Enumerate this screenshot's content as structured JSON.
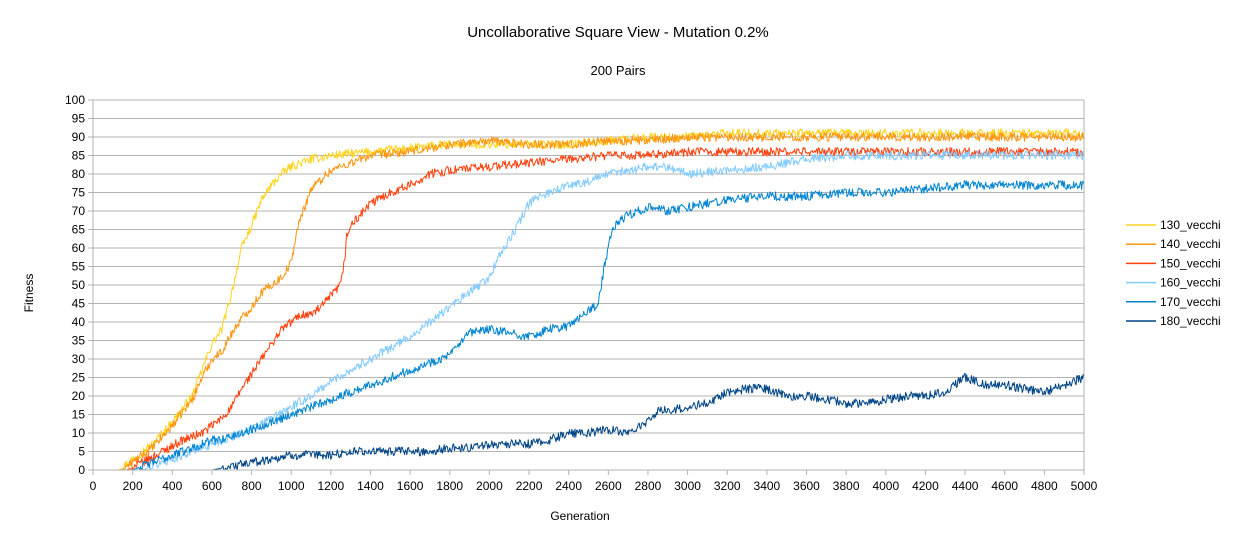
{
  "chart_data": {
    "type": "line",
    "title": "Uncollaborative Square View - Mutation 0.2%",
    "subtitle": "200 Pairs",
    "xlabel": "Generation",
    "ylabel": "Fitness",
    "xlim": [
      0,
      5000
    ],
    "ylim": [
      0,
      100
    ],
    "x_ticks": [
      0,
      200,
      400,
      600,
      800,
      1000,
      1200,
      1400,
      1600,
      1800,
      2000,
      2200,
      2400,
      2600,
      2800,
      3000,
      3200,
      3400,
      3600,
      3800,
      4000,
      4200,
      4400,
      4600,
      4800,
      5000
    ],
    "y_ticks": [
      0,
      5,
      10,
      15,
      20,
      25,
      30,
      35,
      40,
      45,
      50,
      55,
      60,
      65,
      70,
      75,
      80,
      85,
      90,
      95,
      100
    ],
    "grid": true,
    "legend_position": "right",
    "series": [
      {
        "name": "130_vecchi",
        "color": "#ffd320",
        "x": [
          130,
          200,
          300,
          400,
          500,
          550,
          600,
          650,
          700,
          750,
          800,
          850,
          900,
          950,
          1000,
          1100,
          1200,
          1400,
          1600,
          1800,
          2000,
          2200,
          2400,
          2600,
          2800,
          3000,
          3200,
          3400,
          3600,
          3800,
          4000,
          4200,
          4400,
          4600,
          4800,
          5000
        ],
        "y": [
          0,
          3,
          7,
          13,
          20,
          27,
          34,
          38,
          48,
          60,
          66,
          73,
          77,
          80,
          82,
          84,
          85,
          86,
          87,
          88,
          88,
          88,
          88,
          89,
          90,
          90,
          91,
          91,
          91,
          91,
          91,
          91,
          91,
          91,
          91,
          91
        ]
      },
      {
        "name": "140_vecchi",
        "color": "#ff950e",
        "x": [
          140,
          200,
          300,
          400,
          500,
          550,
          600,
          650,
          700,
          750,
          800,
          850,
          900,
          950,
          1000,
          1030,
          1060,
          1100,
          1200,
          1300,
          1400,
          1600,
          1800,
          2000,
          2200,
          2400,
          2600,
          2800,
          3000,
          3200,
          3400,
          3600,
          3800,
          4000,
          4200,
          4400,
          4600,
          4800,
          5000
        ],
        "y": [
          0,
          2,
          6,
          12,
          19,
          25,
          30,
          32,
          37,
          41,
          44,
          48,
          50,
          52,
          56,
          65,
          70,
          76,
          81,
          83,
          85,
          86,
          88,
          89,
          88,
          88,
          89,
          89,
          90,
          90,
          90,
          90,
          90,
          90,
          90,
          90,
          90,
          90,
          90
        ]
      },
      {
        "name": "150_vecchi",
        "color": "#ff420e",
        "x": [
          170,
          250,
          350,
          450,
          550,
          650,
          700,
          750,
          800,
          850,
          900,
          950,
          1000,
          1050,
          1100,
          1150,
          1200,
          1250,
          1270,
          1280,
          1300,
          1350,
          1400,
          1500,
          1600,
          1700,
          1800,
          2000,
          2200,
          2400,
          2600,
          2800,
          3000,
          3200,
          3400,
          3600,
          3800,
          4000,
          4200,
          4400,
          4600,
          4800,
          5000
        ],
        "y": [
          0,
          2,
          5,
          8,
          10,
          14,
          17,
          22,
          26,
          30,
          34,
          38,
          40,
          42,
          42,
          44,
          47,
          50,
          57,
          63,
          66,
          69,
          72,
          75,
          77,
          80,
          81,
          82,
          83,
          84,
          85,
          85,
          86,
          86,
          86,
          86,
          86,
          86,
          86,
          86,
          86,
          86,
          86
        ]
      },
      {
        "name": "160_vecchi",
        "color": "#83caff",
        "x": [
          250,
          300,
          400,
          500,
          600,
          700,
          800,
          900,
          1000,
          1100,
          1200,
          1300,
          1400,
          1500,
          1600,
          1700,
          1800,
          1900,
          1950,
          2000,
          2050,
          2100,
          2150,
          2200,
          2250,
          2300,
          2400,
          2500,
          2600,
          2700,
          2800,
          2900,
          3000,
          3200,
          3400,
          3600,
          3800,
          4000,
          4200,
          4400,
          4600,
          4800,
          5000
        ],
        "y": [
          0,
          1,
          3,
          5,
          7,
          9,
          11,
          14,
          17,
          20,
          24,
          27,
          30,
          33,
          36,
          40,
          44,
          48,
          50,
          52,
          58,
          62,
          67,
          72,
          74,
          75,
          77,
          78,
          80,
          81,
          82,
          82,
          80,
          81,
          82,
          84,
          85,
          85,
          85,
          85,
          85,
          85,
          85
        ]
      },
      {
        "name": "170_vecchi",
        "color": "#0084d1",
        "x": [
          200,
          300,
          400,
          500,
          600,
          700,
          800,
          900,
          1000,
          1100,
          1200,
          1300,
          1400,
          1500,
          1600,
          1700,
          1800,
          1850,
          1900,
          2000,
          2100,
          2200,
          2300,
          2400,
          2500,
          2550,
          2580,
          2600,
          2620,
          2650,
          2700,
          2800,
          2900,
          3000,
          3200,
          3400,
          3600,
          3800,
          4000,
          4200,
          4400,
          4600,
          4800,
          5000
        ],
        "y": [
          0,
          2,
          4,
          6,
          8,
          9,
          11,
          13,
          15,
          17,
          19,
          21,
          23,
          25,
          27,
          29,
          31,
          34,
          37,
          38,
          37,
          36,
          38,
          39,
          43,
          45,
          55,
          60,
          65,
          67,
          69,
          71,
          70,
          71,
          73,
          74,
          74,
          75,
          75,
          76,
          77,
          77,
          77,
          77
        ]
      },
      {
        "name": "180_vecchi",
        "color": "#004586",
        "x": [
          500,
          600,
          700,
          800,
          900,
          1000,
          1100,
          1200,
          1300,
          1400,
          1500,
          1600,
          1700,
          1800,
          1900,
          2000,
          2100,
          2200,
          2300,
          2400,
          2500,
          2600,
          2700,
          2800,
          2850,
          2900,
          3000,
          3100,
          3200,
          3300,
          3400,
          3500,
          3600,
          3700,
          3800,
          3900,
          4000,
          4100,
          4200,
          4300,
          4400,
          4500,
          4600,
          4700,
          4800,
          4900,
          5000
        ],
        "y": [
          0,
          0,
          1,
          2,
          3,
          4,
          4,
          4,
          5,
          5,
          5,
          5,
          5,
          6,
          6,
          7,
          7,
          7,
          8,
          10,
          10,
          11,
          10,
          13,
          16,
          16,
          17,
          18,
          21,
          22,
          22,
          20,
          20,
          19,
          18,
          18,
          19,
          20,
          20,
          21,
          25,
          23,
          23,
          22,
          21,
          23,
          25
        ]
      }
    ]
  }
}
